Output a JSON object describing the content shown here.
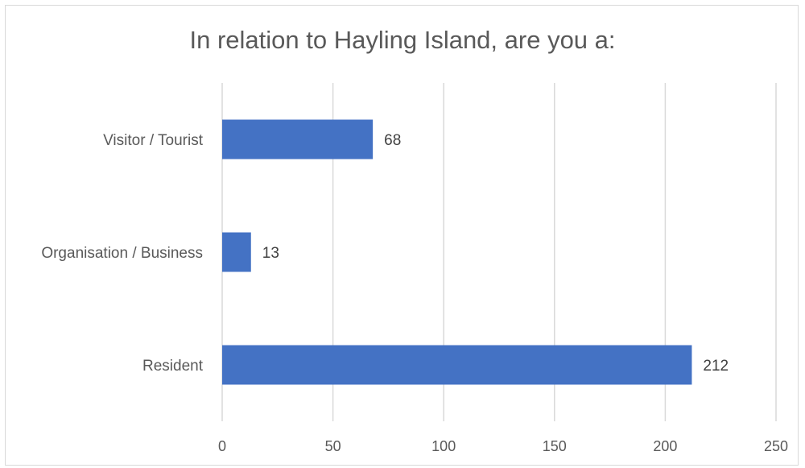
{
  "chart_data": {
    "type": "bar",
    "orientation": "horizontal",
    "title": "In relation to Hayling Island, are you a:",
    "categories": [
      "Visitor / Tourist",
      "Organisation / Business",
      "Resident"
    ],
    "values": [
      68,
      13,
      212
    ],
    "xlim": [
      0,
      250
    ],
    "xticks": [
      0,
      50,
      100,
      150,
      200,
      250
    ],
    "xlabel": "",
    "ylabel": "",
    "grid": "vertical",
    "bar_color": "#4472c4",
    "data_labels": true,
    "legend": "none"
  }
}
